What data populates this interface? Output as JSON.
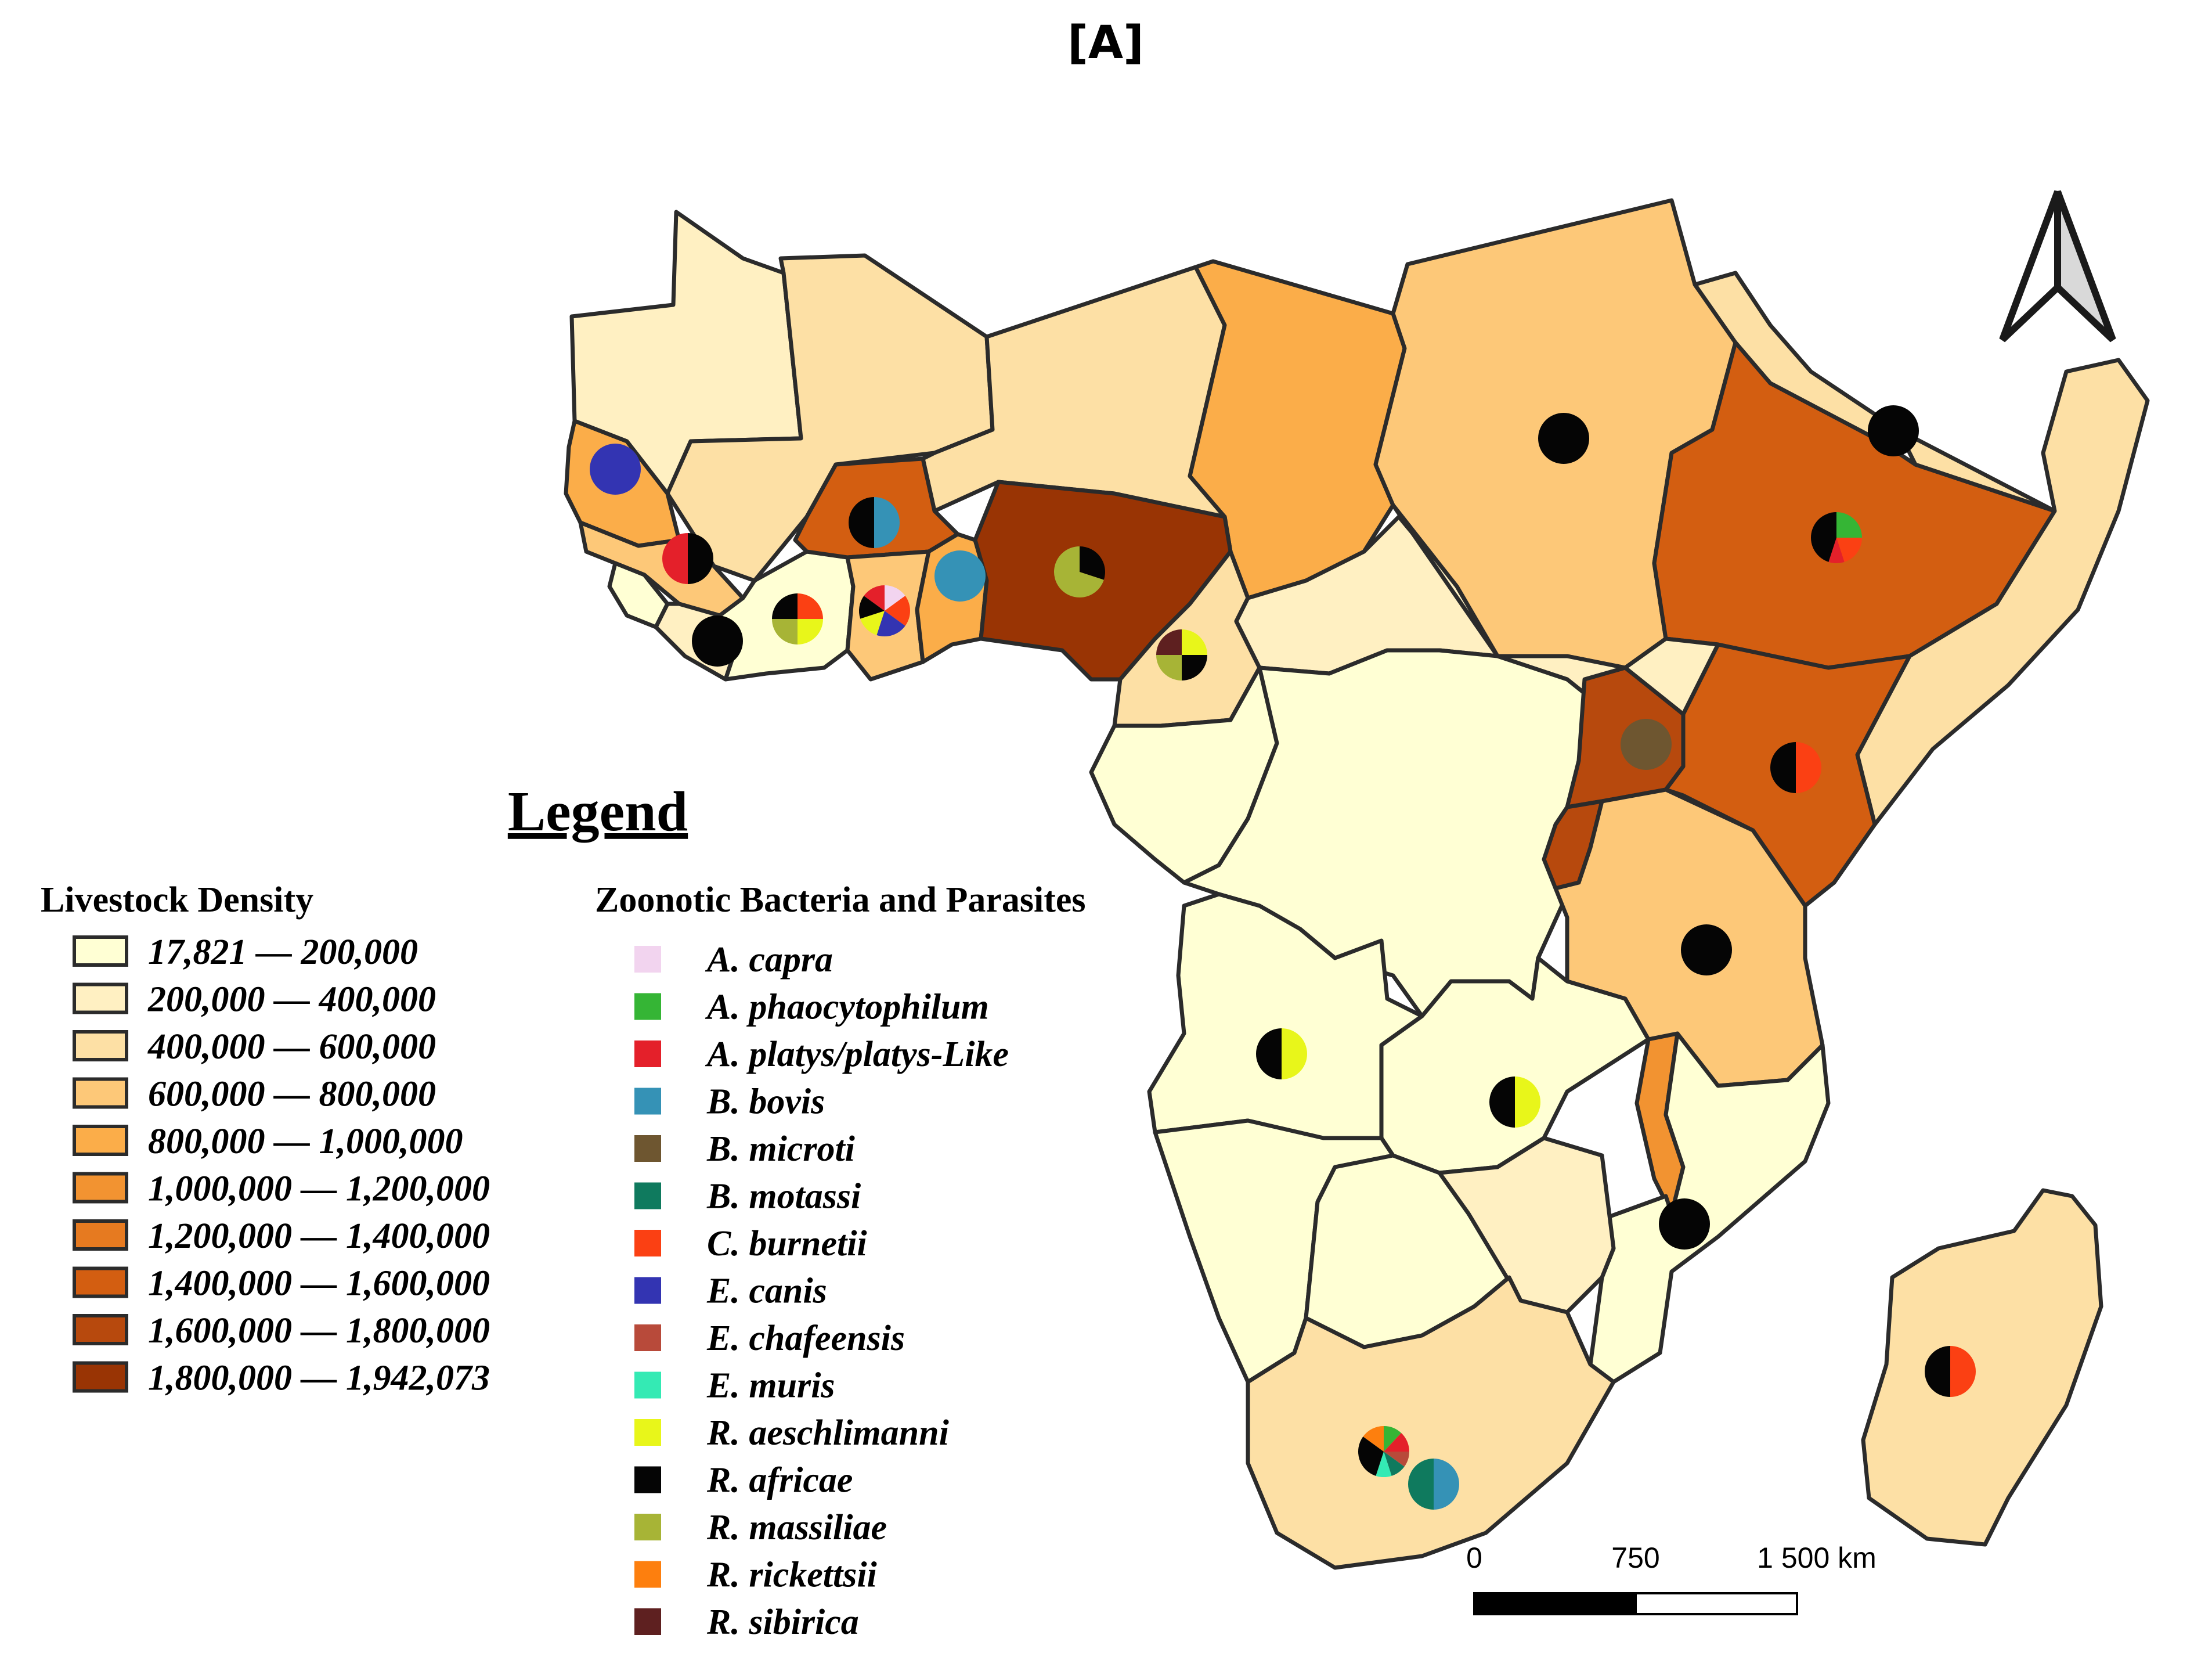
{
  "panel_label": "[A]",
  "legend": {
    "title": "Legend",
    "density_heading": "Livestock Density",
    "density_classes": [
      {
        "label": "17,821 — 200,000",
        "color": "#ffffd4"
      },
      {
        "label": "200,000 — 400,000",
        "color": "#fff0c2"
      },
      {
        "label": "400,000 — 600,000",
        "color": "#fde0a5"
      },
      {
        "label": "600,000 — 800,000",
        "color": "#fdc878"
      },
      {
        "label": "800,000 — 1,000,000",
        "color": "#fbad49"
      },
      {
        "label": "1,000,000 — 1,200,000",
        "color": "#f29331"
      },
      {
        "label": "1,200,000 — 1,400,000",
        "color": "#e67a20"
      },
      {
        "label": "1,400,000 — 1,600,000",
        "color": "#d35e11"
      },
      {
        "label": "1,600,000 — 1,800,000",
        "color": "#b7490d"
      },
      {
        "label": "1,800,000 — 1,942,073",
        "color": "#993404"
      }
    ],
    "pathogen_heading": "Zoonotic Bacteria and Parasites",
    "pathogens": [
      {
        "label": "A. capra",
        "color": "#f2d4ef"
      },
      {
        "label": "A. phaocytophilum",
        "color": "#35b535"
      },
      {
        "label": "A. platys/platys-Like",
        "color": "#e4202a"
      },
      {
        "label": "B. bovis",
        "color": "#3592b6"
      },
      {
        "label": "B. microti",
        "color": "#6e5630"
      },
      {
        "label": "B. motassi",
        "color": "#0f7a5e"
      },
      {
        "label": "C. burnetii",
        "color": "#fb4013"
      },
      {
        "label": "E. canis",
        "color": "#3334b2"
      },
      {
        "label": "E. chafeensis",
        "color": "#b84a3a"
      },
      {
        "label": "E. muris",
        "color": "#34eab4"
      },
      {
        "label": "R. aeschlimanni",
        "color": "#e8f61a"
      },
      {
        "label": "R. africae",
        "color": "#050505"
      },
      {
        "label": "R. massiliae",
        "color": "#a7b436"
      },
      {
        "label": "R. rickettsii",
        "color": "#fd7f0e"
      },
      {
        "label": "R. sibirica",
        "color": "#5e2020"
      }
    ]
  },
  "scale_bar": {
    "labels": [
      "0",
      "750",
      "1 500 km"
    ]
  },
  "countries": [
    {
      "name": "mauritania",
      "density_class": 1
    },
    {
      "name": "mali",
      "density_class": 2
    },
    {
      "name": "niger",
      "density_class": 2
    },
    {
      "name": "chad",
      "density_class": 4
    },
    {
      "name": "sudan",
      "density_class": 3
    },
    {
      "name": "eritrea",
      "density_class": 2
    },
    {
      "name": "ethiopia",
      "density_class": 7
    },
    {
      "name": "somalia",
      "density_class": 2
    },
    {
      "name": "senegal",
      "density_class": 4
    },
    {
      "name": "guinea",
      "density_class": 3
    },
    {
      "name": "sierra-leone",
      "density_class": 0
    },
    {
      "name": "liberia",
      "density_class": 1
    },
    {
      "name": "cote-divoire",
      "density_class": 0
    },
    {
      "name": "burkina-faso",
      "density_class": 7
    },
    {
      "name": "ghana",
      "density_class": 3
    },
    {
      "name": "togo-benin",
      "density_class": 4
    },
    {
      "name": "nigeria",
      "density_class": 9
    },
    {
      "name": "cameroon",
      "density_class": 2
    },
    {
      "name": "car",
      "density_class": 1
    },
    {
      "name": "south-sudan",
      "density_class": 1
    },
    {
      "name": "gabon-congo",
      "density_class": 0
    },
    {
      "name": "drc",
      "density_class": 0
    },
    {
      "name": "uganda",
      "density_class": 8
    },
    {
      "name": "kenya",
      "density_class": 7
    },
    {
      "name": "rwanda-burundi",
      "density_class": 8
    },
    {
      "name": "tanzania",
      "density_class": 3
    },
    {
      "name": "angola",
      "density_class": 0
    },
    {
      "name": "zambia",
      "density_class": 0
    },
    {
      "name": "malawi",
      "density_class": 5
    },
    {
      "name": "mozambique",
      "density_class": 0
    },
    {
      "name": "namibia",
      "density_class": 0
    },
    {
      "name": "botswana",
      "density_class": 0
    },
    {
      "name": "zimbabwe",
      "density_class": 1
    },
    {
      "name": "south-africa",
      "density_class": 2
    },
    {
      "name": "madagascar",
      "density_class": 2
    }
  ],
  "pie_markers": [
    {
      "name": "marker-senegal",
      "slices": [
        {
          "pathogen": "E. canis",
          "share": 1
        }
      ]
    },
    {
      "name": "marker-guinea",
      "slices": [
        {
          "pathogen": "R. africae",
          "share": 0.5
        },
        {
          "pathogen": "A. platys/platys-Like",
          "share": 0.5
        }
      ]
    },
    {
      "name": "marker-liberia",
      "slices": [
        {
          "pathogen": "R. africae",
          "share": 1
        }
      ]
    },
    {
      "name": "marker-cote-divoire",
      "slices": [
        {
          "pathogen": "C. burnetii",
          "share": 0.25
        },
        {
          "pathogen": "R. aeschlimanni",
          "share": 0.25
        },
        {
          "pathogen": "R. massiliae",
          "share": 0.25
        },
        {
          "pathogen": "R. africae",
          "share": 0.25
        }
      ]
    },
    {
      "name": "marker-burkina-faso",
      "slices": [
        {
          "pathogen": "B. bovis",
          "share": 0.5
        },
        {
          "pathogen": "R. africae",
          "share": 0.5
        }
      ]
    },
    {
      "name": "marker-ghana",
      "slices": [
        {
          "pathogen": "A. capra",
          "share": 0.15
        },
        {
          "pathogen": "C. burnetii",
          "share": 0.2
        },
        {
          "pathogen": "E. canis",
          "share": 0.2
        },
        {
          "pathogen": "R. aeschlimanni",
          "share": 0.15
        },
        {
          "pathogen": "R. africae",
          "share": 0.15
        },
        {
          "pathogen": "A. platys/platys-Like",
          "share": 0.15
        }
      ]
    },
    {
      "name": "marker-togo-benin",
      "slices": [
        {
          "pathogen": "B. bovis",
          "share": 1
        }
      ]
    },
    {
      "name": "marker-nigeria",
      "slices": [
        {
          "pathogen": "R. africae",
          "share": 0.3
        },
        {
          "pathogen": "R. massiliae",
          "share": 0.7
        }
      ]
    },
    {
      "name": "marker-cameroon",
      "slices": [
        {
          "pathogen": "R. aeschlimanni",
          "share": 0.25
        },
        {
          "pathogen": "R. africae",
          "share": 0.25
        },
        {
          "pathogen": "R. massiliae",
          "share": 0.25
        },
        {
          "pathogen": "R. sibirica",
          "share": 0.25
        }
      ]
    },
    {
      "name": "marker-sudan",
      "slices": [
        {
          "pathogen": "R. africae",
          "share": 1
        }
      ]
    },
    {
      "name": "marker-eritrea",
      "slices": [
        {
          "pathogen": "R. africae",
          "share": 1
        }
      ]
    },
    {
      "name": "marker-ethiopia",
      "slices": [
        {
          "pathogen": "A. phaocytophilum",
          "share": 0.25
        },
        {
          "pathogen": "C. burnetii",
          "share": 0.2
        },
        {
          "pathogen": "A. platys/platys-Like",
          "share": 0.1
        },
        {
          "pathogen": "R. africae",
          "share": 0.45
        }
      ]
    },
    {
      "name": "marker-uganda",
      "slices": [
        {
          "pathogen": "B. microti",
          "share": 1
        }
      ]
    },
    {
      "name": "marker-kenya",
      "slices": [
        {
          "pathogen": "C. burnetii",
          "share": 0.5
        },
        {
          "pathogen": "R. africae",
          "share": 0.5
        }
      ]
    },
    {
      "name": "marker-tanzania",
      "slices": [
        {
          "pathogen": "R. africae",
          "share": 1
        }
      ]
    },
    {
      "name": "marker-angola",
      "slices": [
        {
          "pathogen": "R. aeschlimanni",
          "share": 0.5
        },
        {
          "pathogen": "R. africae",
          "share": 0.5
        }
      ]
    },
    {
      "name": "marker-zambia",
      "slices": [
        {
          "pathogen": "R. aeschlimanni",
          "share": 0.5
        },
        {
          "pathogen": "R. africae",
          "share": 0.5
        }
      ]
    },
    {
      "name": "marker-malawi",
      "slices": [
        {
          "pathogen": "R. africae",
          "share": 1
        }
      ]
    },
    {
      "name": "marker-madagascar",
      "slices": [
        {
          "pathogen": "C. burnetii",
          "share": 0.5
        },
        {
          "pathogen": "R. africae",
          "share": 0.5
        }
      ]
    },
    {
      "name": "marker-south-africa-1",
      "slices": [
        {
          "pathogen": "A. phaocytophilum",
          "share": 0.12
        },
        {
          "pathogen": "A. platys/platys-Like",
          "share": 0.13
        },
        {
          "pathogen": "E. chafeensis",
          "share": 0.1
        },
        {
          "pathogen": "B. motassi",
          "share": 0.1
        },
        {
          "pathogen": "E. muris",
          "share": 0.1
        },
        {
          "pathogen": "R. africae",
          "share": 0.3
        },
        {
          "pathogen": "R. rickettsii",
          "share": 0.15
        }
      ]
    },
    {
      "name": "marker-south-africa-2",
      "slices": [
        {
          "pathogen": "B. bovis",
          "share": 0.5
        },
        {
          "pathogen": "B. motassi",
          "share": 0.5
        }
      ]
    }
  ]
}
